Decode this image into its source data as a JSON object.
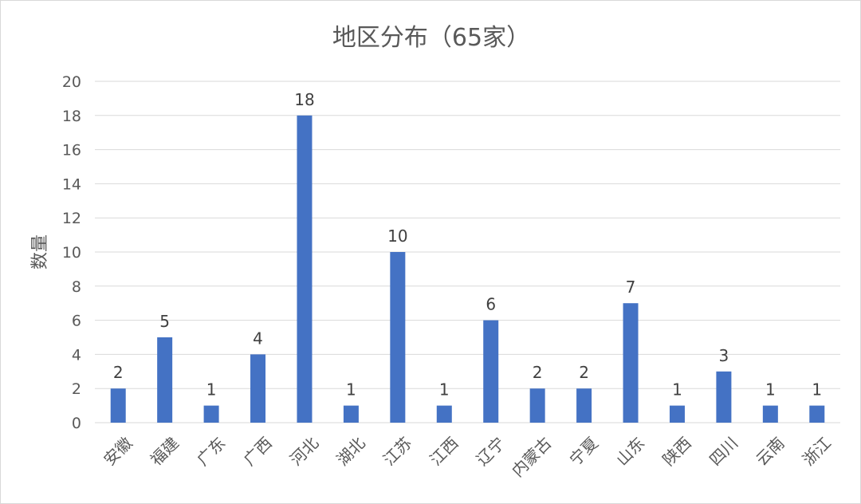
{
  "chart_data": {
    "type": "bar",
    "title": "地区分布（65家）",
    "xlabel": "",
    "ylabel": "数量",
    "ylim": [
      0,
      20
    ],
    "yticks": [
      0,
      2,
      4,
      6,
      8,
      10,
      12,
      14,
      16,
      18,
      20
    ],
    "grid": true,
    "legend": "none",
    "categories": [
      "安徽",
      "福建",
      "广东",
      "广西",
      "河北",
      "湖北",
      "江苏",
      "江西",
      "辽宁",
      "内蒙古",
      "宁夏",
      "山东",
      "陕西",
      "四川",
      "云南",
      "浙江"
    ],
    "values": [
      2,
      5,
      1,
      4,
      18,
      1,
      10,
      1,
      6,
      2,
      2,
      7,
      1,
      3,
      1,
      1
    ],
    "bar_color": "#4472c4"
  }
}
